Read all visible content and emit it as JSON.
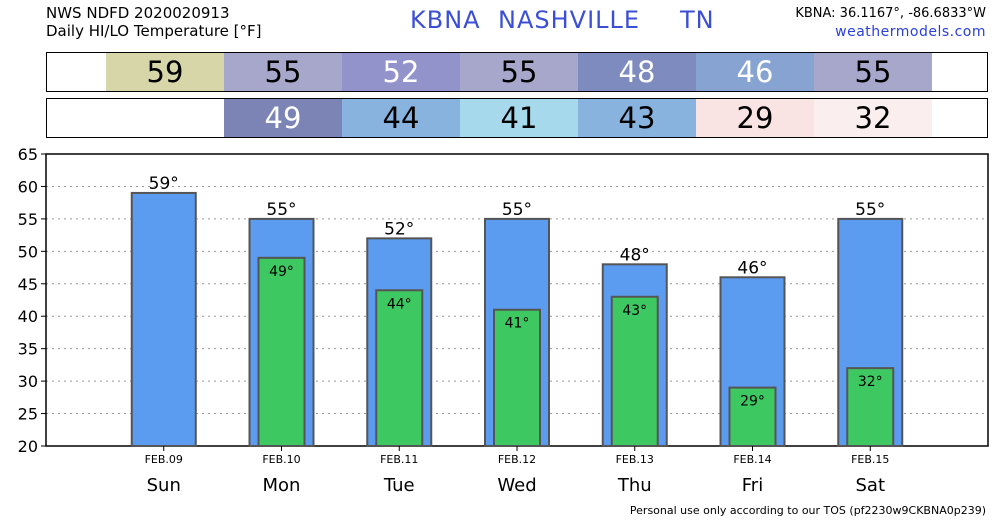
{
  "header": {
    "line1": "NWS NDFD 2020020913",
    "line2": "Daily HI/LO Temperature [°F]",
    "station_id": "KBNA",
    "station_name": "NASHVILLE",
    "state": "TN",
    "coords": "KBNA: 36.1167°, -86.6833°W",
    "site": "weathermodels.com"
  },
  "hi_row": [
    {
      "text": "59",
      "color": "#d6d6a8",
      "fg": "#000000"
    },
    {
      "text": "55",
      "color": "#a7a7cc",
      "fg": "#000000"
    },
    {
      "text": "52",
      "color": "#9393cb",
      "fg": "#ffffff"
    },
    {
      "text": "55",
      "color": "#a7a7cc",
      "fg": "#000000"
    },
    {
      "text": "48",
      "color": "#7d8bbf",
      "fg": "#ffffff"
    },
    {
      "text": "46",
      "color": "#86a3d2",
      "fg": "#ffffff"
    },
    {
      "text": "55",
      "color": "#a7a7cc",
      "fg": "#000000"
    }
  ],
  "lo_row": [
    {
      "text": "49",
      "color": "#7b84b5",
      "fg": "#ffffff"
    },
    {
      "text": "44",
      "color": "#87b3de",
      "fg": "#000000"
    },
    {
      "text": "41",
      "color": "#a7d9ec",
      "fg": "#000000"
    },
    {
      "text": "43",
      "color": "#87b3de",
      "fg": "#000000"
    },
    {
      "text": "29",
      "color": "#fae3e3",
      "fg": "#000000"
    },
    {
      "text": "32",
      "color": "#fbeeee",
      "fg": "#000000"
    }
  ],
  "footer": "Personal use only according to our TOS (pf2230w9CKBNA0p239)",
  "chart_data": {
    "type": "bar",
    "title": "Daily HI/LO Temperature [°F]",
    "categories": [
      "Sun",
      "Mon",
      "Tue",
      "Wed",
      "Thu",
      "Fri",
      "Sat"
    ],
    "dates": [
      "FEB.09",
      "FEB.10",
      "FEB.11",
      "FEB.12",
      "FEB.13",
      "FEB.14",
      "FEB.15"
    ],
    "series": [
      {
        "name": "HI",
        "color": "#5b9bf0",
        "values": [
          59,
          55,
          52,
          55,
          48,
          46,
          55
        ]
      },
      {
        "name": "LO",
        "color": "#3ec862",
        "values": [
          null,
          49,
          44,
          41,
          43,
          29,
          32
        ]
      }
    ],
    "ylim": [
      20,
      65
    ],
    "yticks": [
      20,
      25,
      30,
      35,
      40,
      45,
      50,
      55,
      60,
      65
    ],
    "grid": true,
    "degree_suffix": "°"
  }
}
